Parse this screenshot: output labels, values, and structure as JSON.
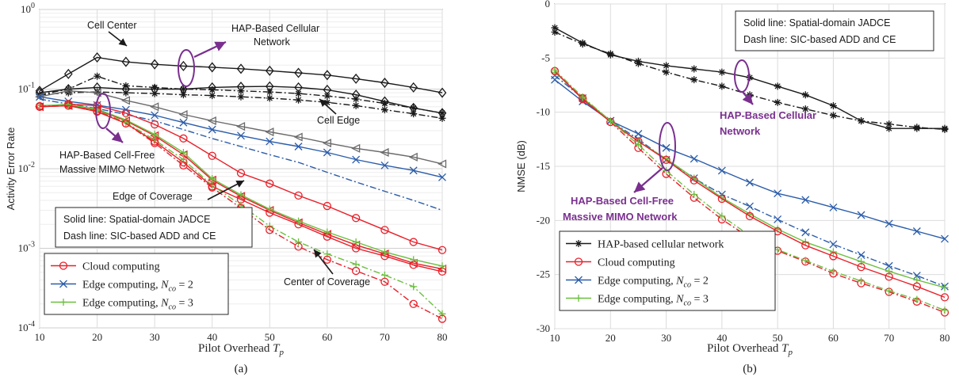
{
  "colors": {
    "cellular": "#1a1a1a",
    "cloud": "#e8202a",
    "edge2": "#2a5caa",
    "edge3": "#6cbf3f",
    "gray": "#666666",
    "annotation": "#7a2f8f"
  },
  "chart_data": [
    {
      "type": "line",
      "panel_caption": "(a)",
      "xlabel": "Pilot Overhead T_p",
      "ylabel": "Activity Error Rate",
      "yscale": "log",
      "xlim": [
        10,
        80
      ],
      "ylim": [
        0.0001,
        1
      ],
      "x_ticks": [
        "10",
        "20",
        "30",
        "40",
        "50",
        "60",
        "70",
        "80"
      ],
      "y_ticks": [
        "10^-4",
        "10^-3",
        "10^-2",
        "10^-1",
        "10^0"
      ],
      "grid": true,
      "x": [
        10,
        15,
        20,
        25,
        30,
        35,
        40,
        45,
        50,
        55,
        60,
        65,
        70,
        75,
        80
      ],
      "series": [
        {
          "group": "Cell Center",
          "method": "HAP-based cellular network",
          "line": "solid",
          "marker": "diamond",
          "color": "#1a1a1a",
          "values": [
            0.095,
            0.155,
            0.25,
            0.22,
            0.205,
            0.195,
            0.188,
            0.18,
            0.17,
            0.16,
            0.15,
            0.135,
            0.12,
            0.105,
            0.09
          ]
        },
        {
          "group": "Cell Center",
          "method": "HAP-based cellular network",
          "line": "dashdot",
          "marker": "star",
          "color": "#1a1a1a",
          "values": [
            0.085,
            0.1,
            0.145,
            0.11,
            0.105,
            0.1,
            0.098,
            0.095,
            0.092,
            0.088,
            0.082,
            0.075,
            0.066,
            0.058,
            0.05
          ]
        },
        {
          "group": "Cell Edge",
          "method": "HAP-based cellular network",
          "line": "solid",
          "marker": "diamond",
          "color": "#1a1a1a",
          "values": [
            0.09,
            0.1,
            0.105,
            0.1,
            0.1,
            0.1,
            0.105,
            0.107,
            0.108,
            0.105,
            0.098,
            0.085,
            0.07,
            0.058,
            0.05
          ]
        },
        {
          "group": "Cell Edge",
          "method": "HAP-based cellular network",
          "line": "dashdot",
          "marker": "star",
          "color": "#1a1a1a",
          "values": [
            0.085,
            0.09,
            0.092,
            0.09,
            0.088,
            0.085,
            0.083,
            0.08,
            0.077,
            0.073,
            0.068,
            0.062,
            0.055,
            0.049,
            0.043
          ]
        },
        {
          "group": "Edge of Coverage",
          "method": "Cloud computing",
          "line": "solid",
          "marker": "triangle-left",
          "color": "#6a6a6a",
          "values": [
            0.08,
            0.095,
            0.09,
            0.072,
            0.06,
            0.048,
            0.04,
            0.034,
            0.029,
            0.025,
            0.021,
            0.018,
            0.016,
            0.014,
            0.0115
          ]
        },
        {
          "group": "Edge of Coverage",
          "method": "Edge computing, N_co = 2",
          "line": "solid",
          "marker": "x",
          "color": "#2a5caa",
          "values": [
            0.08,
            0.07,
            0.063,
            0.055,
            0.047,
            0.038,
            0.031,
            0.026,
            0.022,
            0.019,
            0.016,
            0.013,
            0.011,
            0.0095,
            0.0078
          ]
        },
        {
          "group": "Edge of Coverage",
          "method": "Edge computing, N_co = 2",
          "line": "dashdot",
          "marker": "none",
          "color": "#2a5caa",
          "values": [
            0.075,
            0.065,
            0.057,
            0.048,
            0.04,
            0.031,
            0.024,
            0.019,
            0.015,
            0.012,
            0.009,
            0.0068,
            0.0052,
            0.004,
            0.003
          ]
        },
        {
          "group": "Edge of Coverage",
          "method": "Cloud computing",
          "line": "solid",
          "marker": "circle",
          "color": "#e8202a",
          "values": [
            0.06,
            0.065,
            0.062,
            0.05,
            0.036,
            0.024,
            0.0145,
            0.0088,
            0.0065,
            0.0046,
            0.0034,
            0.0024,
            0.0017,
            0.0012,
            0.00095
          ]
        },
        {
          "group": "Center of Coverage",
          "method": "Cloud computing",
          "line": "solid",
          "marker": "triangle-left",
          "color": "#e8202a",
          "values": [
            0.06,
            0.062,
            0.055,
            0.04,
            0.026,
            0.015,
            0.0072,
            0.0045,
            0.003,
            0.0021,
            0.0015,
            0.0011,
            0.00085,
            0.00065,
            0.00055
          ]
        },
        {
          "group": "Center of Coverage",
          "method": "Cloud computing",
          "line": "solid",
          "marker": "circle",
          "color": "#e8202a",
          "values": [
            0.06,
            0.062,
            0.052,
            0.037,
            0.022,
            0.012,
            0.006,
            0.0041,
            0.0028,
            0.002,
            0.0014,
            0.001,
            0.0008,
            0.00062,
            0.00051
          ]
        },
        {
          "group": "Center of Coverage",
          "method": "Edge computing, N_co = 3",
          "line": "solid",
          "marker": "plus",
          "color": "#6cbf3f",
          "values": [
            0.062,
            0.064,
            0.056,
            0.041,
            0.027,
            0.016,
            0.0075,
            0.0047,
            0.0031,
            0.0022,
            0.0016,
            0.0012,
            0.0009,
            0.00072,
            0.0006
          ]
        },
        {
          "group": "Center of Coverage",
          "method": "Edge computing, N_co = 3",
          "line": "dashdot",
          "marker": "plus",
          "color": "#6cbf3f",
          "values": [
            0.062,
            0.063,
            0.054,
            0.038,
            0.023,
            0.013,
            0.0062,
            0.0035,
            0.0019,
            0.0012,
            0.00085,
            0.00063,
            0.00046,
            0.00033,
            0.00015
          ]
        },
        {
          "group": "Center of Coverage",
          "method": "Cloud computing",
          "line": "dashdot",
          "marker": "circle",
          "color": "#e8202a",
          "values": [
            0.061,
            0.062,
            0.053,
            0.037,
            0.021,
            0.011,
            0.0058,
            0.0032,
            0.0017,
            0.00105,
            0.00072,
            0.00052,
            0.00038,
            0.0002,
            0.00013
          ]
        }
      ],
      "legend": {
        "placement": "bottom-left",
        "entries": [
          {
            "label": "Cloud computing",
            "marker": "circle",
            "color": "#e8202a"
          },
          {
            "label": "Edge computing, N_co = 2",
            "marker": "x",
            "color": "#2a5caa"
          },
          {
            "label": "Edge computing, N_co = 3",
            "marker": "plus",
            "color": "#6cbf3f"
          }
        ]
      },
      "note_box": [
        "Solid line: Spatial-domain JADCE",
        "Dash line: SIC-based ADD and CE"
      ],
      "annotations": {
        "cell_center": "Cell Center",
        "hap_cellular": [
          "HAP-Based Cellular",
          "Network"
        ],
        "cell_edge": "Cell Edge",
        "hap_cellfree": [
          "HAP-Based Cell-Free",
          "Massive MIMO Network"
        ],
        "edge_of_coverage": "Edge of Coverage",
        "center_of_coverage": "Center of Coverage"
      }
    },
    {
      "type": "line",
      "panel_caption": "(b)",
      "xlabel": "Pilot Overhead T_p",
      "ylabel": "NMSE (dB)",
      "xlim": [
        10,
        80
      ],
      "ylim": [
        -30,
        0
      ],
      "x_ticks": [
        "10",
        "20",
        "30",
        "40",
        "50",
        "60",
        "70",
        "80"
      ],
      "y_ticks": [
        "-30",
        "-25",
        "-20",
        "-15",
        "-10",
        "-5",
        "0"
      ],
      "grid": true,
      "x": [
        10,
        15,
        20,
        25,
        30,
        35,
        40,
        45,
        50,
        55,
        60,
        65,
        70,
        75,
        80
      ],
      "series": [
        {
          "method": "HAP-based cellular network",
          "line": "solid",
          "marker": "star",
          "color": "#1a1a1a",
          "values": [
            -2.2,
            -3.6,
            -4.7,
            -5.3,
            -5.7,
            -6.0,
            -6.3,
            -6.8,
            -7.6,
            -8.4,
            -9.4,
            -10.8,
            -11.5,
            -11.5,
            -11.5
          ]
        },
        {
          "method": "HAP-based cellular network",
          "line": "dashdot",
          "marker": "star",
          "color": "#1a1a1a",
          "values": [
            -2.6,
            -3.7,
            -4.6,
            -5.5,
            -6.3,
            -7.0,
            -7.6,
            -8.4,
            -9.1,
            -9.7,
            -10.3,
            -10.8,
            -11.1,
            -11.4,
            -11.6
          ]
        },
        {
          "method": "Edge computing, N_co = 2",
          "line": "solid",
          "marker": "x",
          "color": "#2a5caa",
          "values": [
            -7.0,
            -9.0,
            -10.8,
            -12.0,
            -13.3,
            -14.3,
            -15.4,
            -16.5,
            -17.5,
            -18.1,
            -18.8,
            -19.5,
            -20.3,
            -21.0,
            -21.7
          ]
        },
        {
          "method": "Edge computing, N_co = 2",
          "line": "dashdot",
          "marker": "x",
          "color": "#2a5caa",
          "values": [
            -6.6,
            -8.7,
            -10.8,
            -12.5,
            -14.4,
            -16.1,
            -17.6,
            -18.7,
            -19.9,
            -21.1,
            -22.2,
            -23.2,
            -24.2,
            -25.1,
            -26.1
          ]
        },
        {
          "method": "Edge computing, N_co = 3",
          "line": "solid",
          "marker": "plus",
          "color": "#6cbf3f",
          "values": [
            -6.3,
            -8.7,
            -10.8,
            -12.7,
            -14.3,
            -16.1,
            -17.9,
            -19.4,
            -20.8,
            -22.0,
            -22.9,
            -23.8,
            -24.7,
            -25.5,
            -26.2
          ]
        },
        {
          "method": "Cloud computing",
          "line": "solid",
          "marker": "circle",
          "color": "#e8202a",
          "values": [
            -6.2,
            -8.8,
            -10.9,
            -12.7,
            -14.4,
            -16.3,
            -18.0,
            -19.6,
            -21.0,
            -22.3,
            -23.3,
            -24.3,
            -25.2,
            -26.1,
            -27.1
          ]
        },
        {
          "method": "Cloud computing",
          "line": "dashdot",
          "marker": "circle",
          "color": "#e8202a",
          "values": [
            -6.2,
            -8.7,
            -10.9,
            -13.3,
            -15.7,
            -17.9,
            -19.9,
            -21.6,
            -22.8,
            -23.8,
            -24.9,
            -25.8,
            -26.6,
            -27.5,
            -28.5
          ]
        },
        {
          "method": "Edge computing, N_co = 3",
          "line": "dashdot",
          "marker": "plus",
          "color": "#6cbf3f",
          "values": [
            -6.1,
            -8.6,
            -10.8,
            -13.0,
            -15.4,
            -17.6,
            -19.6,
            -21.4,
            -22.7,
            -23.7,
            -24.7,
            -25.6,
            -26.5,
            -27.3,
            -28.3
          ]
        }
      ],
      "legend": {
        "placement": "bottom-left",
        "entries": [
          {
            "label": "HAP-based cellular network",
            "marker": "star",
            "color": "#1a1a1a"
          },
          {
            "label": "Cloud computing",
            "marker": "circle",
            "color": "#e8202a"
          },
          {
            "label": "Edge computing, N_co = 2",
            "marker": "x",
            "color": "#2a5caa"
          },
          {
            "label": "Edge computing, N_co = 3",
            "marker": "plus",
            "color": "#6cbf3f"
          }
        ]
      },
      "note_box": [
        "Solid line: Spatial-domain JADCE",
        "Dash line: SIC-based ADD and CE"
      ],
      "annotations": {
        "hap_cellular": [
          "HAP-Based Cellular",
          "Network"
        ],
        "hap_cellfree": [
          "HAP-Based Cell-Free",
          "Massive MIMO Network"
        ]
      }
    }
  ]
}
